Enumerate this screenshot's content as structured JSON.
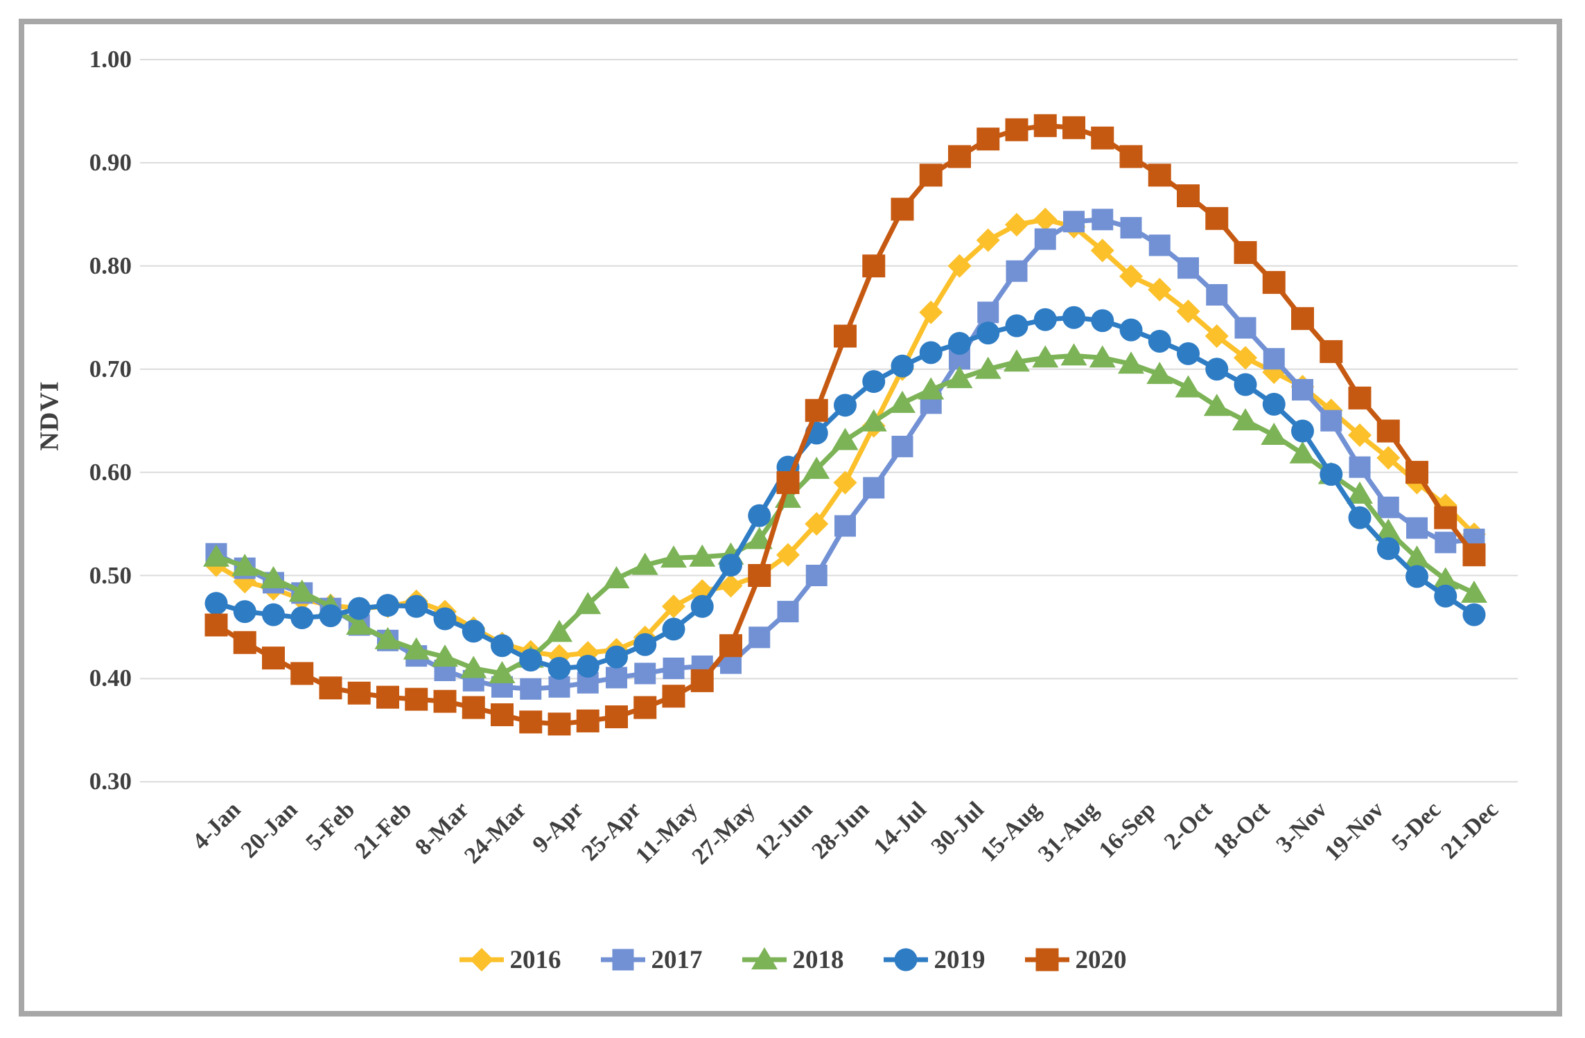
{
  "chart_data": {
    "type": "line",
    "title": "",
    "xlabel": "",
    "ylabel": "NDVI",
    "ylim": [
      0.3,
      1.0
    ],
    "y_tick_labels": [
      "0.30",
      "0.40",
      "0.50",
      "0.60",
      "0.70",
      "0.80",
      "0.90",
      "1.00"
    ],
    "x_tick_labels": [
      "4-Jan",
      "20-Jan",
      "5-Feb",
      "21-Feb",
      "8-Mar",
      "24-Mar",
      "9-Apr",
      "25-Apr",
      "11-May",
      "27-May",
      "12-Jun",
      "28-Jun",
      "14-Jul",
      "30-Jul",
      "15-Aug",
      "31-Aug",
      "16-Sep",
      "2-Oct",
      "18-Oct",
      "3-Nov",
      "19-Nov",
      "5-Dec",
      "21-Dec"
    ],
    "points_per_tick": 2,
    "n_points": 45,
    "grid": "horizontal-only",
    "legend_position": "bottom-center",
    "style": {
      "axis_text_color": "#3F3F3F",
      "gridline_color": "#DBDBDB",
      "frame_color": "#A7A7A7",
      "background": "#FFFFFF"
    },
    "series": [
      {
        "name": "2016",
        "marker": "diamond",
        "color": "#FBC02A",
        "values": [
          0.51,
          0.494,
          0.487,
          0.477,
          0.471,
          0.468,
          0.47,
          0.475,
          0.465,
          0.449,
          0.434,
          0.426,
          0.422,
          0.425,
          0.428,
          0.44,
          0.47,
          0.485,
          0.49,
          0.5,
          0.52,
          0.55,
          0.59,
          0.645,
          0.7,
          0.755,
          0.8,
          0.825,
          0.84,
          0.845,
          0.838,
          0.815,
          0.79,
          0.777,
          0.756,
          0.732,
          0.711,
          0.697,
          0.683,
          0.66,
          0.636,
          0.614,
          0.59,
          0.568,
          0.54
        ]
      },
      {
        "name": "2017",
        "marker": "square",
        "color": "#7291D4",
        "values": [
          0.521,
          0.507,
          0.493,
          0.483,
          0.468,
          0.452,
          0.437,
          0.422,
          0.408,
          0.398,
          0.392,
          0.39,
          0.392,
          0.396,
          0.401,
          0.405,
          0.41,
          0.412,
          0.415,
          0.44,
          0.465,
          0.5,
          0.548,
          0.585,
          0.625,
          0.667,
          0.71,
          0.755,
          0.795,
          0.826,
          0.843,
          0.845,
          0.837,
          0.82,
          0.798,
          0.772,
          0.74,
          0.71,
          0.68,
          0.65,
          0.605,
          0.566,
          0.546,
          0.532,
          0.535
        ]
      },
      {
        "name": "2018",
        "marker": "triangle",
        "color": "#7CB356",
        "values": [
          0.518,
          0.509,
          0.497,
          0.484,
          0.47,
          0.452,
          0.438,
          0.428,
          0.421,
          0.41,
          0.405,
          0.42,
          0.445,
          0.472,
          0.497,
          0.51,
          0.517,
          0.518,
          0.52,
          0.535,
          0.575,
          0.603,
          0.631,
          0.649,
          0.667,
          0.68,
          0.691,
          0.7,
          0.707,
          0.711,
          0.713,
          0.711,
          0.705,
          0.695,
          0.682,
          0.664,
          0.65,
          0.636,
          0.618,
          0.598,
          0.579,
          0.543,
          0.517,
          0.496,
          0.483
        ]
      },
      {
        "name": "2019",
        "marker": "circle",
        "color": "#2E7CC4",
        "values": [
          0.473,
          0.465,
          0.462,
          0.459,
          0.461,
          0.468,
          0.471,
          0.47,
          0.458,
          0.446,
          0.432,
          0.418,
          0.41,
          0.412,
          0.421,
          0.433,
          0.448,
          0.47,
          0.51,
          0.558,
          0.605,
          0.638,
          0.665,
          0.688,
          0.703,
          0.716,
          0.725,
          0.735,
          0.742,
          0.748,
          0.75,
          0.747,
          0.738,
          0.727,
          0.715,
          0.7,
          0.685,
          0.666,
          0.64,
          0.598,
          0.556,
          0.526,
          0.499,
          0.48,
          0.462
        ]
      },
      {
        "name": "2020",
        "marker": "square",
        "color": "#C65911",
        "values": [
          0.452,
          0.435,
          0.42,
          0.405,
          0.391,
          0.386,
          0.382,
          0.38,
          0.378,
          0.372,
          0.365,
          0.358,
          0.356,
          0.359,
          0.363,
          0.372,
          0.383,
          0.398,
          0.432,
          0.5,
          0.59,
          0.66,
          0.732,
          0.8,
          0.855,
          0.888,
          0.906,
          0.923,
          0.932,
          0.936,
          0.934,
          0.924,
          0.906,
          0.888,
          0.868,
          0.846,
          0.813,
          0.784,
          0.749,
          0.717,
          0.672,
          0.64,
          0.6,
          0.556,
          0.52
        ]
      }
    ]
  }
}
